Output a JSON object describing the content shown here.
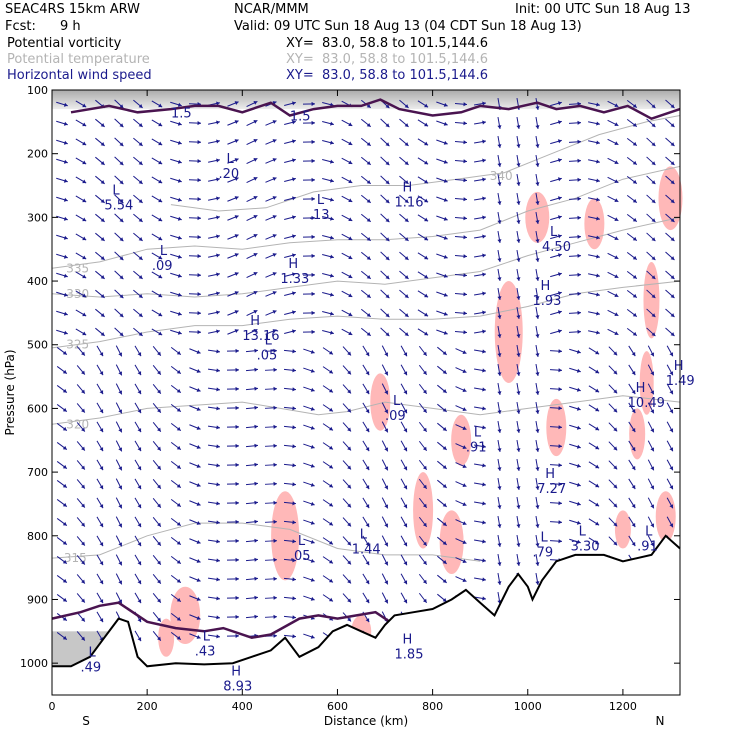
{
  "header": {
    "model": "SEAC4RS 15km ARW",
    "center": "NCAR/MMM",
    "init": "Init: 00 UTC Sun 18 Aug 13",
    "fcst_label": "Fcst:",
    "fcst_value": "9 h",
    "valid": "Valid: 09 UTC Sun 18 Aug 13 (04 CDT Sun 18 Aug 13)",
    "fields": [
      {
        "name": "Potential vorticity",
        "xy": "XY=  83.0, 58.8 to 101.5,144.6",
        "color": "#000000"
      },
      {
        "name": "Potential temperature",
        "xy": "XY=  83.0, 58.8 to 101.5,144.6",
        "color": "#b4b4b4"
      },
      {
        "name": "Horizontal wind speed",
        "xy": "XY=  83.0, 58.8 to 101.5,144.6",
        "color": "#1a1a8c"
      }
    ]
  },
  "chart_data": {
    "type": "cross-section",
    "xlabel": "Distance (km)",
    "ylabel": "Pressure (hPa)",
    "xlim": [
      0,
      1320
    ],
    "ylim": [
      1050,
      100
    ],
    "x_ticks": [
      0,
      200,
      400,
      600,
      800,
      1000,
      1200
    ],
    "y_ticks": [
      100,
      200,
      300,
      400,
      500,
      600,
      700,
      800,
      900,
      1000
    ],
    "end_labels": {
      "left": "S",
      "right": "N"
    },
    "theta_isentropes": [
      {
        "label": "315",
        "points": [
          [
            0,
            835
          ],
          [
            100,
            830
          ],
          [
            200,
            800
          ],
          [
            300,
            780
          ],
          [
            400,
            780
          ],
          [
            500,
            790
          ],
          [
            600,
            820
          ],
          [
            700,
            830
          ],
          [
            800,
            830
          ],
          [
            900,
            840
          ]
        ],
        "label_at": [
          25,
          835
        ]
      },
      {
        "label": "320",
        "points": [
          [
            0,
            625
          ],
          [
            100,
            615
          ],
          [
            200,
            600
          ],
          [
            300,
            595
          ],
          [
            400,
            590
          ],
          [
            480,
            600
          ],
          [
            560,
            610
          ],
          [
            620,
            605
          ],
          [
            700,
            590
          ],
          [
            800,
            600
          ],
          [
            900,
            610
          ],
          [
            1000,
            600
          ],
          [
            1100,
            590
          ],
          [
            1200,
            580
          ],
          [
            1320,
            590
          ]
        ],
        "label_at": [
          30,
          625
        ]
      },
      {
        "label": "325",
        "points": [
          [
            0,
            505
          ],
          [
            100,
            495
          ],
          [
            200,
            480
          ],
          [
            300,
            470
          ],
          [
            400,
            470
          ],
          [
            500,
            460
          ],
          [
            600,
            455
          ],
          [
            700,
            460
          ],
          [
            800,
            460
          ],
          [
            900,
            455
          ],
          [
            1000,
            440
          ],
          [
            1100,
            420
          ],
          [
            1200,
            410
          ],
          [
            1320,
            400
          ]
        ],
        "label_at": [
          30,
          500
        ]
      },
      {
        "label": "330",
        "points": [
          [
            0,
            420
          ],
          [
            100,
            425
          ],
          [
            200,
            420
          ],
          [
            300,
            425
          ],
          [
            400,
            420
          ],
          [
            500,
            410
          ],
          [
            600,
            400
          ],
          [
            700,
            405
          ],
          [
            800,
            395
          ],
          [
            900,
            385
          ],
          [
            1000,
            360
          ],
          [
            1100,
            340
          ],
          [
            1200,
            320
          ],
          [
            1320,
            300
          ]
        ],
        "label_at": [
          30,
          420
        ]
      },
      {
        "label": "335",
        "points": [
          [
            0,
            380
          ],
          [
            100,
            370
          ],
          [
            200,
            350
          ],
          [
            300,
            345
          ],
          [
            400,
            350
          ],
          [
            500,
            340
          ],
          [
            600,
            335
          ],
          [
            700,
            335
          ],
          [
            800,
            330
          ],
          [
            900,
            320
          ],
          [
            1000,
            290
          ],
          [
            1100,
            270
          ],
          [
            1200,
            240
          ],
          [
            1320,
            220
          ]
        ],
        "label_at": [
          30,
          380
        ]
      },
      {
        "label": "340",
        "points": [
          [
            250,
            280
          ],
          [
            350,
            290
          ],
          [
            450,
            285
          ],
          [
            550,
            260
          ],
          [
            650,
            250
          ],
          [
            750,
            250
          ],
          [
            850,
            240
          ],
          [
            950,
            230
          ],
          [
            1050,
            200
          ],
          [
            1150,
            170
          ],
          [
            1250,
            150
          ],
          [
            1320,
            140
          ]
        ],
        "label_at": [
          920,
          235
        ]
      }
    ],
    "pv_contour_points": [
      [
        40,
        135
      ],
      [
        120,
        125
      ],
      [
        180,
        135
      ],
      [
        250,
        130
      ],
      [
        300,
        125
      ],
      [
        350,
        125
      ],
      [
        400,
        135
      ],
      [
        460,
        120
      ],
      [
        500,
        140
      ],
      [
        550,
        130
      ],
      [
        600,
        125
      ],
      [
        650,
        125
      ],
      [
        690,
        115
      ],
      [
        730,
        130
      ],
      [
        800,
        140
      ],
      [
        860,
        135
      ],
      [
        900,
        125
      ],
      [
        960,
        130
      ],
      [
        1020,
        120
      ],
      [
        1060,
        130
      ],
      [
        1110,
        125
      ],
      [
        1160,
        135
      ],
      [
        1210,
        125
      ],
      [
        1260,
        145
      ],
      [
        1320,
        130
      ]
    ],
    "pv_contour_surface_points": [
      [
        0,
        930
      ],
      [
        60,
        920
      ],
      [
        100,
        910
      ],
      [
        140,
        905
      ],
      [
        200,
        935
      ],
      [
        260,
        945
      ],
      [
        320,
        950
      ],
      [
        360,
        945
      ],
      [
        420,
        960
      ],
      [
        460,
        955
      ],
      [
        520,
        930
      ],
      [
        560,
        925
      ],
      [
        600,
        930
      ],
      [
        640,
        925
      ],
      [
        680,
        920
      ],
      [
        720,
        940
      ],
      [
        760,
        925
      ],
      [
        800,
        920
      ]
    ],
    "terrain_points": [
      [
        0,
        1005
      ],
      [
        40,
        1005
      ],
      [
        80,
        990
      ],
      [
        110,
        960
      ],
      [
        140,
        930
      ],
      [
        160,
        935
      ],
      [
        180,
        990
      ],
      [
        200,
        1005
      ],
      [
        260,
        1000
      ],
      [
        320,
        1002
      ],
      [
        380,
        1000
      ],
      [
        420,
        990
      ],
      [
        460,
        980
      ],
      [
        490,
        960
      ],
      [
        520,
        990
      ],
      [
        560,
        975
      ],
      [
        590,
        950
      ],
      [
        620,
        940
      ],
      [
        650,
        950
      ],
      [
        680,
        960
      ],
      [
        700,
        940
      ],
      [
        720,
        925
      ],
      [
        760,
        920
      ],
      [
        800,
        915
      ],
      [
        840,
        900
      ],
      [
        870,
        885
      ],
      [
        900,
        905
      ],
      [
        930,
        925
      ],
      [
        960,
        880
      ],
      [
        980,
        860
      ],
      [
        1000,
        880
      ],
      [
        1010,
        900
      ],
      [
        1030,
        870
      ],
      [
        1060,
        840
      ],
      [
        1100,
        830
      ],
      [
        1160,
        830
      ],
      [
        1200,
        840
      ],
      [
        1260,
        830
      ],
      [
        1290,
        800
      ],
      [
        1320,
        820
      ]
    ],
    "pv_extrema_labels": [
      {
        "type": "L",
        "value": "5.54",
        "at": [
          110,
          280
        ]
      },
      {
        "type": "L",
        "value": ".09",
        "at": [
          210,
          375
        ]
      },
      {
        "type": "L",
        "value": ".20",
        "at": [
          350,
          230
        ]
      },
      {
        "type": "L",
        "value": ".13",
        "at": [
          540,
          295
        ]
      },
      {
        "type": "H",
        "value": "1.33",
        "at": [
          480,
          395
        ]
      },
      {
        "type": "H",
        "value": "13.16",
        "at": [
          400,
          485
        ]
      },
      {
        "type": "L",
        "value": ".05",
        "at": [
          430,
          515
        ]
      },
      {
        "type": "H",
        "value": "1.16",
        "at": [
          720,
          275
        ]
      },
      {
        "type": "L",
        "value": "4.50",
        "at": [
          1030,
          345
        ]
      },
      {
        "type": "H",
        "value": "1.93",
        "at": [
          1010,
          430
        ]
      },
      {
        "type": "L",
        "value": ".09",
        "at": [
          700,
          610
        ]
      },
      {
        "type": "L",
        "value": ".91",
        "at": [
          870,
          660
        ]
      },
      {
        "type": "H",
        "value": "7.27",
        "at": [
          1020,
          725
        ]
      },
      {
        "type": "H",
        "value": "10.49",
        "at": [
          1210,
          590
        ]
      },
      {
        "type": "H",
        "value": "1.49",
        "at": [
          1290,
          555
        ]
      },
      {
        "type": "L",
        "value": ".05",
        "at": [
          500,
          830
        ]
      },
      {
        "type": "L",
        "value": "1.44",
        "at": [
          630,
          820
        ]
      },
      {
        "type": "L",
        "value": ".79",
        "at": [
          1010,
          825
        ]
      },
      {
        "type": "L",
        "value": "3.30",
        "at": [
          1090,
          815
        ]
      },
      {
        "type": "L",
        "value": ".91",
        "at": [
          1230,
          815
        ]
      },
      {
        "type": "L",
        "value": ".43",
        "at": [
          300,
          980
        ]
      },
      {
        "type": "H",
        "value": "1.85",
        "at": [
          720,
          985
        ]
      },
      {
        "type": "H",
        "value": "8.93",
        "at": [
          360,
          1035
        ]
      },
      {
        "type": "L",
        "value": ".49",
        "at": [
          60,
          1005
        ]
      },
      {
        "type": "",
        "value": "1.5",
        "at": [
          250,
          135
        ]
      },
      {
        "type": "",
        "value": "1.5",
        "at": [
          500,
          140
        ]
      }
    ],
    "colors": {
      "pv_contour": "#4a1450",
      "wind_vectors": "#1a1a8c",
      "isentropes": "#b4b4b4",
      "shading_pink": "#ffb8b8",
      "shading_gray": "#777777",
      "terrain": "#000000"
    }
  }
}
